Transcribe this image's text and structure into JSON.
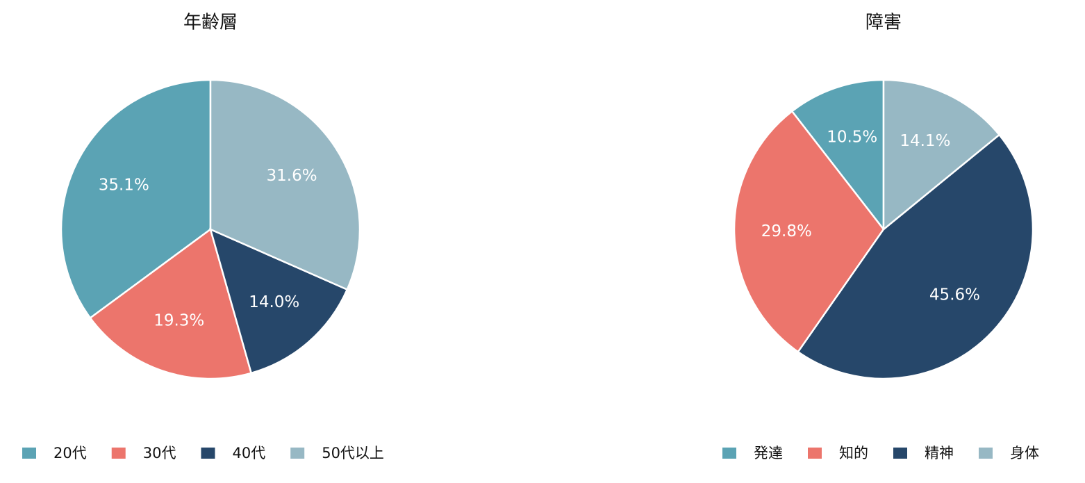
{
  "chart_data": [
    {
      "type": "pie",
      "title": "年齢層",
      "categories": [
        "20代",
        "30代",
        "40代",
        "50代以上"
      ],
      "values": [
        35.1,
        19.3,
        14.0,
        31.6
      ],
      "value_labels": [
        "35.1%",
        "19.3%",
        "14.0%",
        "31.6%"
      ],
      "colors": [
        "#5ba3b4",
        "#ec756c",
        "#26476a",
        "#97b8c4"
      ],
      "legend": "bottom-left"
    },
    {
      "type": "pie",
      "title": "障害",
      "categories": [
        "発達",
        "知的",
        "精神",
        "身体"
      ],
      "values": [
        10.5,
        29.8,
        45.6,
        14.1
      ],
      "value_labels": [
        "10.5%",
        "29.8%",
        "45.6%",
        "14.1%"
      ],
      "colors": [
        "#5ba3b4",
        "#ec756c",
        "#26476a",
        "#97b8c4"
      ],
      "legend": "bottom-right"
    }
  ]
}
